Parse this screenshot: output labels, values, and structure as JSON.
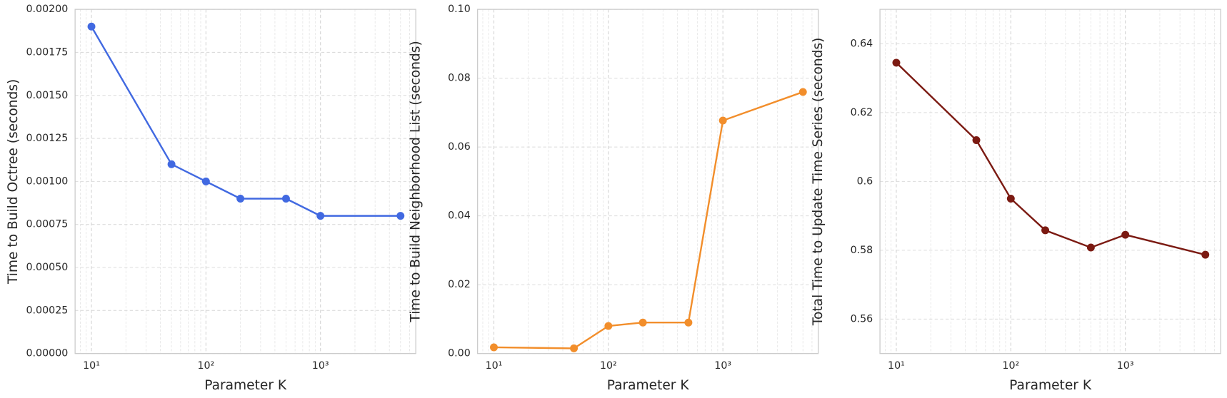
{
  "chart_data": [
    {
      "type": "line",
      "xlabel": "Parameter K",
      "ylabel": "Time to Build Octree (seconds)",
      "x": [
        10,
        50,
        100,
        200,
        500,
        1000,
        5000
      ],
      "values": [
        0.0019,
        0.0011,
        0.001,
        0.0009,
        0.0009,
        0.0008,
        0.0008
      ],
      "color": "#4169e1",
      "xscale": "log",
      "xlim": [
        7.2,
        6800
      ],
      "ylim": [
        0,
        0.002
      ],
      "xticks": [
        {
          "value": 10,
          "label": "10¹"
        },
        {
          "value": 100,
          "label": "10²"
        },
        {
          "value": 1000,
          "label": "10³"
        }
      ],
      "yticks": [
        {
          "value": 0,
          "label": "0.00000"
        },
        {
          "value": 0.00025,
          "label": "0.00025"
        },
        {
          "value": 0.0005,
          "label": "0.00050"
        },
        {
          "value": 0.00075,
          "label": "0.00075"
        },
        {
          "value": 0.001,
          "label": "0.00100"
        },
        {
          "value": 0.00125,
          "label": "0.00125"
        },
        {
          "value": 0.0015,
          "label": "0.00150"
        },
        {
          "value": 0.00175,
          "label": "0.00175"
        },
        {
          "value": 0.002,
          "label": "0.00200"
        }
      ],
      "grid": true,
      "minor_grid": true
    },
    {
      "type": "line",
      "xlabel": "Parameter K",
      "ylabel": "Time to Build Neighborhood List (seconds)",
      "x": [
        10,
        50,
        100,
        200,
        500,
        1000,
        5000
      ],
      "values": [
        0.0018,
        0.0015,
        0.008,
        0.009,
        0.009,
        0.0677,
        0.076
      ],
      "color": "#f28e2b",
      "xscale": "log",
      "xlim": [
        7.2,
        6800
      ],
      "ylim": [
        0,
        0.1
      ],
      "xticks": [
        {
          "value": 10,
          "label": "10¹"
        },
        {
          "value": 100,
          "label": "10²"
        },
        {
          "value": 1000,
          "label": "10³"
        }
      ],
      "yticks": [
        {
          "value": 0,
          "label": "0.00"
        },
        {
          "value": 0.02,
          "label": "0.02"
        },
        {
          "value": 0.04,
          "label": "0.04"
        },
        {
          "value": 0.06,
          "label": "0.06"
        },
        {
          "value": 0.08,
          "label": "0.08"
        },
        {
          "value": 0.1,
          "label": "0.10"
        }
      ],
      "grid": true,
      "minor_grid": true
    },
    {
      "type": "line",
      "xlabel": "Parameter K",
      "ylabel": "Total Time to Update Time Series (seconds)",
      "x": [
        10,
        50,
        100,
        200,
        500,
        1000,
        5000
      ],
      "values": [
        0.6345,
        0.612,
        0.595,
        0.5858,
        0.5808,
        0.5845,
        0.5787
      ],
      "color": "#7b1a12",
      "xscale": "log",
      "xlim": [
        7.2,
        6800
      ],
      "ylim": [
        0.55,
        0.65
      ],
      "xticks": [
        {
          "value": 10,
          "label": "10¹"
        },
        {
          "value": 100,
          "label": "10²"
        },
        {
          "value": 1000,
          "label": "10³"
        }
      ],
      "yticks": [
        0.56,
        0.58,
        0.6,
        0.62,
        0.64
      ],
      "grid": true,
      "minor_grid": true
    }
  ]
}
